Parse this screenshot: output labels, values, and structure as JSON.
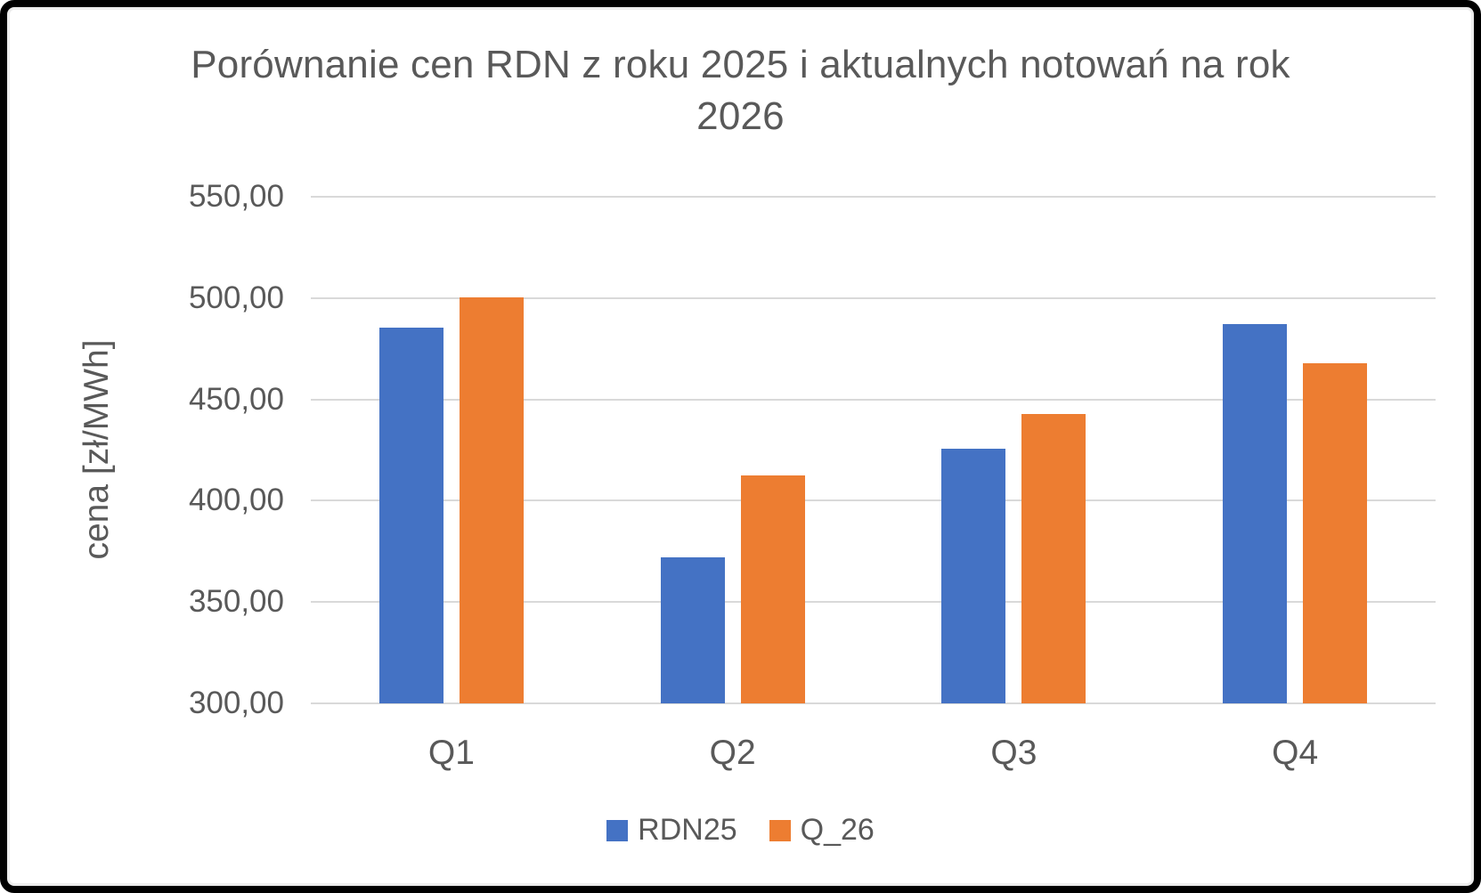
{
  "chart_data": {
    "type": "bar",
    "title": "Porównanie cen RDN z roku 2025 i aktualnych notowań na rok 2026",
    "categories": [
      "Q1",
      "Q2",
      "Q3",
      "Q4"
    ],
    "series": [
      {
        "name": "RDN25",
        "color": "#4472C4",
        "values": [
          485.5,
          372.0,
          425.5,
          487.0
        ]
      },
      {
        "name": "Q_26",
        "color": "#ED7D31",
        "values": [
          500.5,
          412.3,
          443.0,
          468.0
        ]
      }
    ],
    "xlabel": "",
    "ylabel": "cena [zł/MWh]",
    "ylim": [
      300,
      550
    ],
    "ytick_step": 50,
    "ytick_labels": [
      "300,00",
      "350,00",
      "400,00",
      "450,00",
      "500,00",
      "550,00"
    ],
    "grid": true,
    "legend_position": "bottom",
    "gridline_color": "#d9d9d9",
    "text_color": "#595959"
  }
}
